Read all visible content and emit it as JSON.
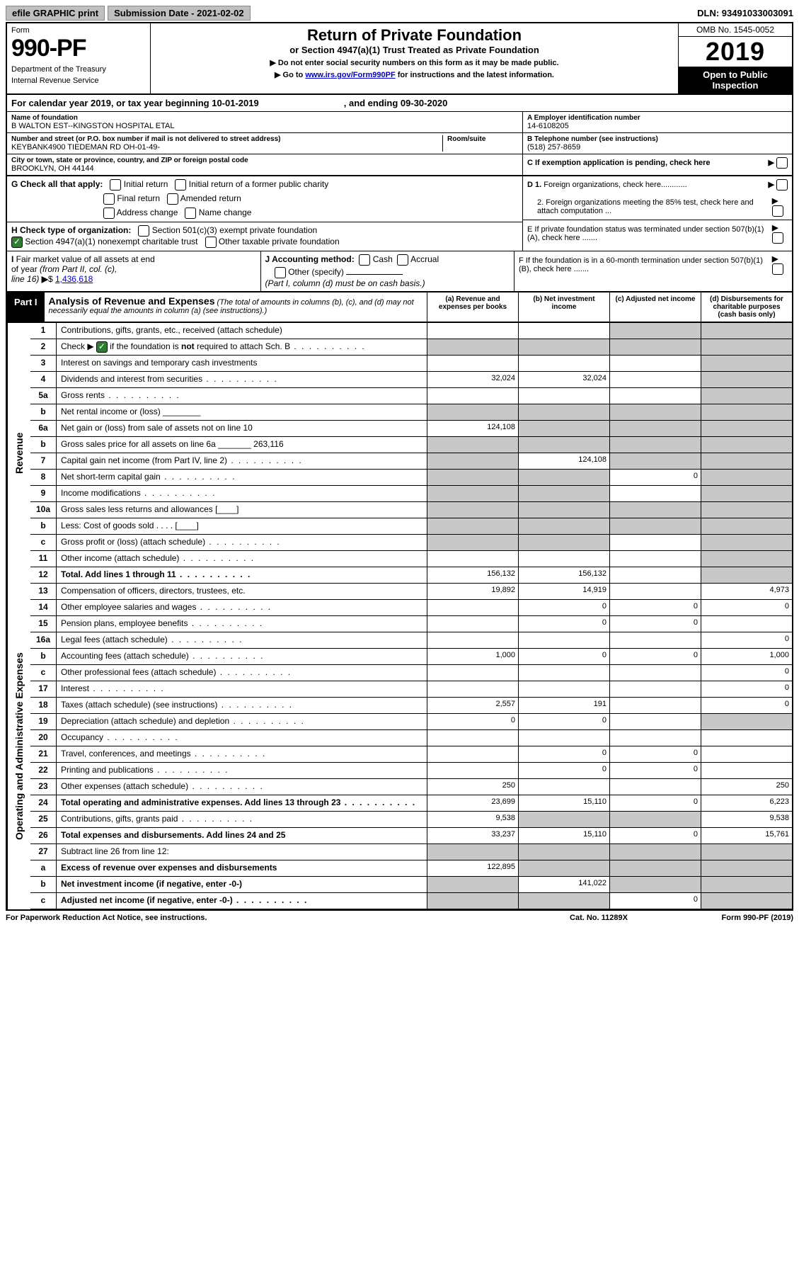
{
  "top": {
    "graphic_btn": "efile GRAPHIC print",
    "submission": "Submission Date - 2021-02-02",
    "dln": "DLN: 93491033003091"
  },
  "header": {
    "form_label": "Form",
    "form_no": "990-PF",
    "dept": "Department of the Treasury",
    "irs": "Internal Revenue Service",
    "title": "Return of Private Foundation",
    "subtitle": "or Section 4947(a)(1) Trust Treated as Private Foundation",
    "note1": "▶ Do not enter social security numbers on this form as it may be made public.",
    "note2_pre": "▶ Go to ",
    "note2_link": "www.irs.gov/Form990PF",
    "note2_post": " for instructions and the latest information.",
    "omb": "OMB No. 1545-0052",
    "year": "2019",
    "open": "Open to Public Inspection"
  },
  "cal_year": {
    "pre": "For calendar year 2019, or tax year beginning 10-01-2019",
    "end": ", and ending 09-30-2020"
  },
  "entity": {
    "name_label": "Name of foundation",
    "name": "B WALTON EST--KINGSTON HOSPITAL ETAL",
    "addr_label": "Number and street (or P.O. box number if mail is not delivered to street address)",
    "addr": "KEYBANK4900 TIEDEMAN RD OH-01-49-",
    "room_label": "Room/suite",
    "city_label": "City or town, state or province, country, and ZIP or foreign postal code",
    "city": "BROOKLYN, OH  44144",
    "ein_label": "A Employer identification number",
    "ein": "14-6108205",
    "phone_label": "B Telephone number (see instructions)",
    "phone": "(518) 257-8659",
    "c_label": "C If exemption application is pending, check here"
  },
  "checks": {
    "g_label": "G Check all that apply:",
    "g_opts": [
      "Initial return",
      "Initial return of a former public charity",
      "Final return",
      "Amended return",
      "Address change",
      "Name change"
    ],
    "h_label": "H Check type of organization:",
    "h_opt1": "Section 501(c)(3) exempt private foundation",
    "h_opt2": "Section 4947(a)(1) nonexempt charitable trust",
    "h_opt3": "Other taxable private foundation",
    "d1": "D 1. Foreign organizations, check here............",
    "d2": "2. Foreign organizations meeting the 85% test, check here and attach computation ...",
    "e": "E  If private foundation status was terminated under section 507(b)(1)(A), check here .......",
    "f": "F  If the foundation is in a 60-month termination under section 507(b)(1)(B), check here .......",
    "i_label": "I Fair market value of all assets at end of year (from Part II, col. (c), line 16) ▶$ ",
    "i_value": "1,436,618",
    "j_label": "J Accounting method:",
    "j_cash": "Cash",
    "j_accrual": "Accrual",
    "j_other": "Other (specify)",
    "j_note": "(Part I, column (d) must be on cash basis.)"
  },
  "part1": {
    "tab": "Part I",
    "title": "Analysis of Revenue and Expenses",
    "note": " (The total of amounts in columns (b), (c), and (d) may not necessarily equal the amounts in column (a) (see instructions).)",
    "col_a": "(a)   Revenue and expenses per books",
    "col_b": "(b)  Net investment income",
    "col_c": "(c)  Adjusted net income",
    "col_d": "(d)  Disbursements for charitable purposes (cash basis only)"
  },
  "sections": {
    "revenue": "Revenue",
    "expenses": "Operating and Administrative Expenses"
  },
  "lines": [
    {
      "n": "1",
      "d": "Contributions, gifts, grants, etc., received (attach schedule)",
      "a": "",
      "b": "",
      "c": "g",
      "dd": "g"
    },
    {
      "n": "2",
      "d": "Check ▶ ☑ if the foundation is not required to attach Sch. B",
      "dots": true,
      "a": "g",
      "b": "g",
      "c": "g",
      "dd": "g"
    },
    {
      "n": "3",
      "d": "Interest on savings and temporary cash investments",
      "a": "",
      "b": "",
      "c": "",
      "dd": "g"
    },
    {
      "n": "4",
      "d": "Dividends and interest from securities",
      "dots": true,
      "a": "32,024",
      "b": "32,024",
      "c": "",
      "dd": "g"
    },
    {
      "n": "5a",
      "d": "Gross rents",
      "dots": true,
      "a": "",
      "b": "",
      "c": "",
      "dd": "g"
    },
    {
      "n": "b",
      "d": "Net rental income or (loss)  ________",
      "a": "g",
      "b": "g",
      "c": "g",
      "dd": "g"
    },
    {
      "n": "6a",
      "d": "Net gain or (loss) from sale of assets not on line 10",
      "a": "124,108",
      "b": "g",
      "c": "g",
      "dd": "g"
    },
    {
      "n": "b",
      "d": "Gross sales price for all assets on line 6a _______ 263,116",
      "a": "g",
      "b": "g",
      "c": "g",
      "dd": "g"
    },
    {
      "n": "7",
      "d": "Capital gain net income (from Part IV, line 2)",
      "dots": true,
      "a": "g",
      "b": "124,108",
      "c": "g",
      "dd": "g"
    },
    {
      "n": "8",
      "d": "Net short-term capital gain",
      "dots": true,
      "a": "g",
      "b": "g",
      "c": "0",
      "dd": "g"
    },
    {
      "n": "9",
      "d": "Income modifications",
      "dots": true,
      "a": "g",
      "b": "g",
      "c": "",
      "dd": "g"
    },
    {
      "n": "10a",
      "d": "Gross sales less returns and allowances  [____]",
      "a": "g",
      "b": "g",
      "c": "g",
      "dd": "g"
    },
    {
      "n": "b",
      "d": "Less: Cost of goods sold   .  .  .  .   [____]",
      "a": "g",
      "b": "g",
      "c": "g",
      "dd": "g"
    },
    {
      "n": "c",
      "d": "Gross profit or (loss) (attach schedule)",
      "dots": true,
      "a": "g",
      "b": "g",
      "c": "",
      "dd": "g"
    },
    {
      "n": "11",
      "d": "Other income (attach schedule)",
      "dots": true,
      "a": "",
      "b": "",
      "c": "",
      "dd": "g"
    },
    {
      "n": "12",
      "d": "Total. Add lines 1 through 11",
      "bold": true,
      "dots": true,
      "a": "156,132",
      "b": "156,132",
      "c": "",
      "dd": "g"
    }
  ],
  "exp_lines": [
    {
      "n": "13",
      "d": "Compensation of officers, directors, trustees, etc.",
      "a": "19,892",
      "b": "14,919",
      "c": "",
      "dd": "4,973"
    },
    {
      "n": "14",
      "d": "Other employee salaries and wages",
      "dots": true,
      "a": "",
      "b": "0",
      "c": "0",
      "dd": "0"
    },
    {
      "n": "15",
      "d": "Pension plans, employee benefits",
      "dots": true,
      "a": "",
      "b": "0",
      "c": "0",
      "dd": ""
    },
    {
      "n": "16a",
      "d": "Legal fees (attach schedule)",
      "dots": true,
      "a": "",
      "b": "",
      "c": "",
      "dd": "0"
    },
    {
      "n": "b",
      "d": "Accounting fees (attach schedule)",
      "dots": true,
      "a": "1,000",
      "b": "0",
      "c": "0",
      "dd": "1,000"
    },
    {
      "n": "c",
      "d": "Other professional fees (attach schedule)",
      "dots": true,
      "a": "",
      "b": "",
      "c": "",
      "dd": "0"
    },
    {
      "n": "17",
      "d": "Interest",
      "dots": true,
      "a": "",
      "b": "",
      "c": "",
      "dd": "0"
    },
    {
      "n": "18",
      "d": "Taxes (attach schedule) (see instructions)",
      "dots": true,
      "a": "2,557",
      "b": "191",
      "c": "",
      "dd": "0"
    },
    {
      "n": "19",
      "d": "Depreciation (attach schedule) and depletion",
      "dots": true,
      "a": "0",
      "b": "0",
      "c": "",
      "dd": "g"
    },
    {
      "n": "20",
      "d": "Occupancy",
      "dots": true,
      "a": "",
      "b": "",
      "c": "",
      "dd": ""
    },
    {
      "n": "21",
      "d": "Travel, conferences, and meetings",
      "dots": true,
      "a": "",
      "b": "0",
      "c": "0",
      "dd": ""
    },
    {
      "n": "22",
      "d": "Printing and publications",
      "dots": true,
      "a": "",
      "b": "0",
      "c": "0",
      "dd": ""
    },
    {
      "n": "23",
      "d": "Other expenses (attach schedule)",
      "dots": true,
      "a": "250",
      "b": "",
      "c": "",
      "dd": "250"
    },
    {
      "n": "24",
      "d": "Total operating and administrative expenses. Add lines 13 through 23",
      "bold": true,
      "dots": true,
      "a": "23,699",
      "b": "15,110",
      "c": "0",
      "dd": "6,223"
    },
    {
      "n": "25",
      "d": "Contributions, gifts, grants paid",
      "dots": true,
      "a": "9,538",
      "b": "g",
      "c": "g",
      "dd": "9,538"
    },
    {
      "n": "26",
      "d": "Total expenses and disbursements. Add lines 24 and 25",
      "bold": true,
      "a": "33,237",
      "b": "15,110",
      "c": "0",
      "dd": "15,761"
    },
    {
      "n": "27",
      "d": "Subtract line 26 from line 12:",
      "a": "g",
      "b": "g",
      "c": "g",
      "dd": "g"
    },
    {
      "n": "a",
      "d": "Excess of revenue over expenses and disbursements",
      "bold": true,
      "a": "122,895",
      "b": "g",
      "c": "g",
      "dd": "g"
    },
    {
      "n": "b",
      "d": "Net investment income (if negative, enter -0-)",
      "bold": true,
      "a": "g",
      "b": "141,022",
      "c": "g",
      "dd": "g"
    },
    {
      "n": "c",
      "d": "Adjusted net income (if negative, enter -0-)",
      "bold": true,
      "dots": true,
      "a": "g",
      "b": "g",
      "c": "0",
      "dd": "g"
    }
  ],
  "footer": {
    "left": "For Paperwork Reduction Act Notice, see instructions.",
    "mid": "Cat. No. 11289X",
    "right": "Form 990-PF (2019)"
  }
}
